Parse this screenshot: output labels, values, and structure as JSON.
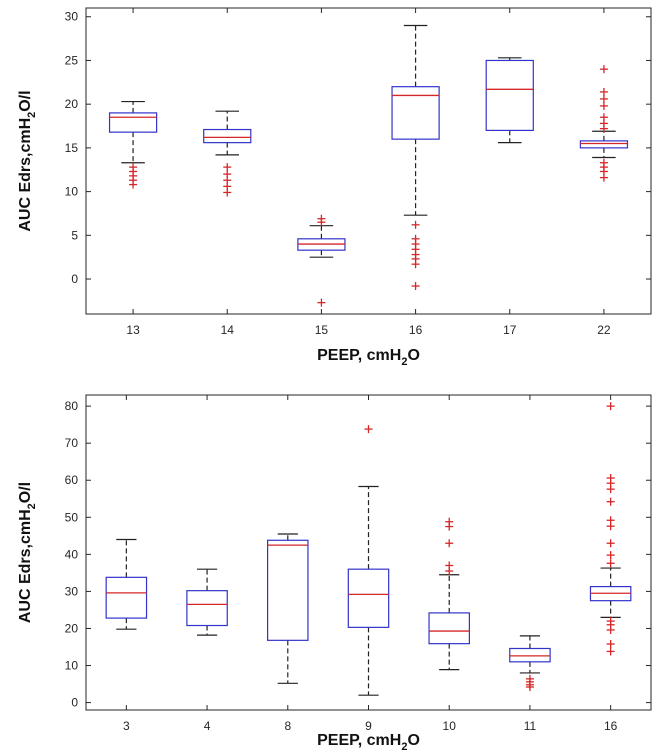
{
  "colors": {
    "box": "#3333cc",
    "median": "#d62728",
    "whisker": "#222222",
    "outlier": "#d62728",
    "axis": "#262626"
  },
  "chart_data": [
    {
      "type": "box",
      "categories": [
        "13",
        "14",
        "15",
        "16",
        "17",
        "22"
      ],
      "ylim": [
        -4,
        31
      ],
      "yticks": [
        0,
        5,
        10,
        15,
        20,
        25,
        30
      ],
      "ylabel": {
        "main": "AUC Edrs,cmH",
        "sub": "2",
        "tail": "O/l"
      },
      "xlabel": {
        "main": "PEEP, cmH",
        "sub": "2",
        "tail": "O"
      },
      "boxes": [
        {
          "q1": 16.8,
          "median": 18.5,
          "q3": 19.0,
          "whisker_low": 13.3,
          "whisker_high": 20.3,
          "outliers": [
            12.8,
            12.3,
            11.8,
            11.3,
            10.8
          ]
        },
        {
          "q1": 15.6,
          "median": 16.2,
          "q3": 17.1,
          "whisker_low": 14.2,
          "whisker_high": 19.2,
          "outliers": [
            12.8,
            12.0,
            11.3,
            10.6,
            9.9
          ]
        },
        {
          "q1": 3.3,
          "median": 4.0,
          "q3": 4.6,
          "whisker_low": 2.5,
          "whisker_high": 6.1,
          "outliers": [
            6.9,
            6.5,
            -2.7
          ]
        },
        {
          "q1": 16.0,
          "median": 21.0,
          "q3": 22.0,
          "whisker_low": 7.3,
          "whisker_high": 29.0,
          "outliers": [
            6.2,
            4.6,
            4.0,
            3.4,
            2.8,
            2.3,
            1.7,
            -0.8
          ]
        },
        {
          "q1": 17.0,
          "median": 21.7,
          "q3": 25.0,
          "whisker_low": 15.6,
          "whisker_high": 25.3,
          "outliers": []
        },
        {
          "q1": 15.0,
          "median": 15.5,
          "q3": 15.8,
          "whisker_low": 13.9,
          "whisker_high": 16.9,
          "outliers": [
            24.0,
            21.4,
            20.6,
            19.8,
            18.5,
            17.8,
            17.2,
            13.3,
            12.8,
            12.3,
            11.6
          ]
        }
      ]
    },
    {
      "type": "box",
      "categories": [
        "3",
        "4",
        "8",
        "9",
        "10",
        "11",
        "16"
      ],
      "ylim": [
        -2,
        83
      ],
      "yticks": [
        0,
        10,
        20,
        30,
        40,
        50,
        60,
        70,
        80
      ],
      "ylabel": {
        "main": "AUC Edrs,cmH",
        "sub": "2",
        "tail": "O/l"
      },
      "xlabel": {
        "main": "PEEP, cmH",
        "sub": "2",
        "tail": "O"
      },
      "boxes": [
        {
          "q1": 22.8,
          "median": 29.6,
          "q3": 33.8,
          "whisker_low": 19.8,
          "whisker_high": 44.0,
          "outliers": []
        },
        {
          "q1": 20.8,
          "median": 26.5,
          "q3": 30.2,
          "whisker_low": 18.2,
          "whisker_high": 36.0,
          "outliers": []
        },
        {
          "q1": 16.8,
          "median": 42.5,
          "q3": 43.8,
          "whisker_low": 5.2,
          "whisker_high": 45.5,
          "outliers": []
        },
        {
          "q1": 20.3,
          "median": 29.2,
          "q3": 36.0,
          "whisker_low": 2.0,
          "whisker_high": 58.3,
          "outliers": [
            73.8
          ]
        },
        {
          "q1": 15.9,
          "median": 19.3,
          "q3": 24.2,
          "whisker_low": 8.9,
          "whisker_high": 34.5,
          "outliers": [
            48.8,
            47.5,
            43.0,
            37.0,
            35.5
          ]
        },
        {
          "q1": 11.0,
          "median": 12.6,
          "q3": 14.6,
          "whisker_low": 8.0,
          "whisker_high": 18.0,
          "outliers": [
            6.4,
            5.6,
            4.8,
            4.2
          ]
        },
        {
          "q1": 27.5,
          "median": 29.5,
          "q3": 31.3,
          "whisker_low": 23.0,
          "whisker_high": 36.3,
          "outliers": [
            80.0,
            60.6,
            59.2,
            57.6,
            54.2,
            49.2,
            47.6,
            43.0,
            39.8,
            37.6,
            22.0,
            21.0,
            19.6,
            15.8,
            13.8
          ]
        }
      ]
    }
  ]
}
